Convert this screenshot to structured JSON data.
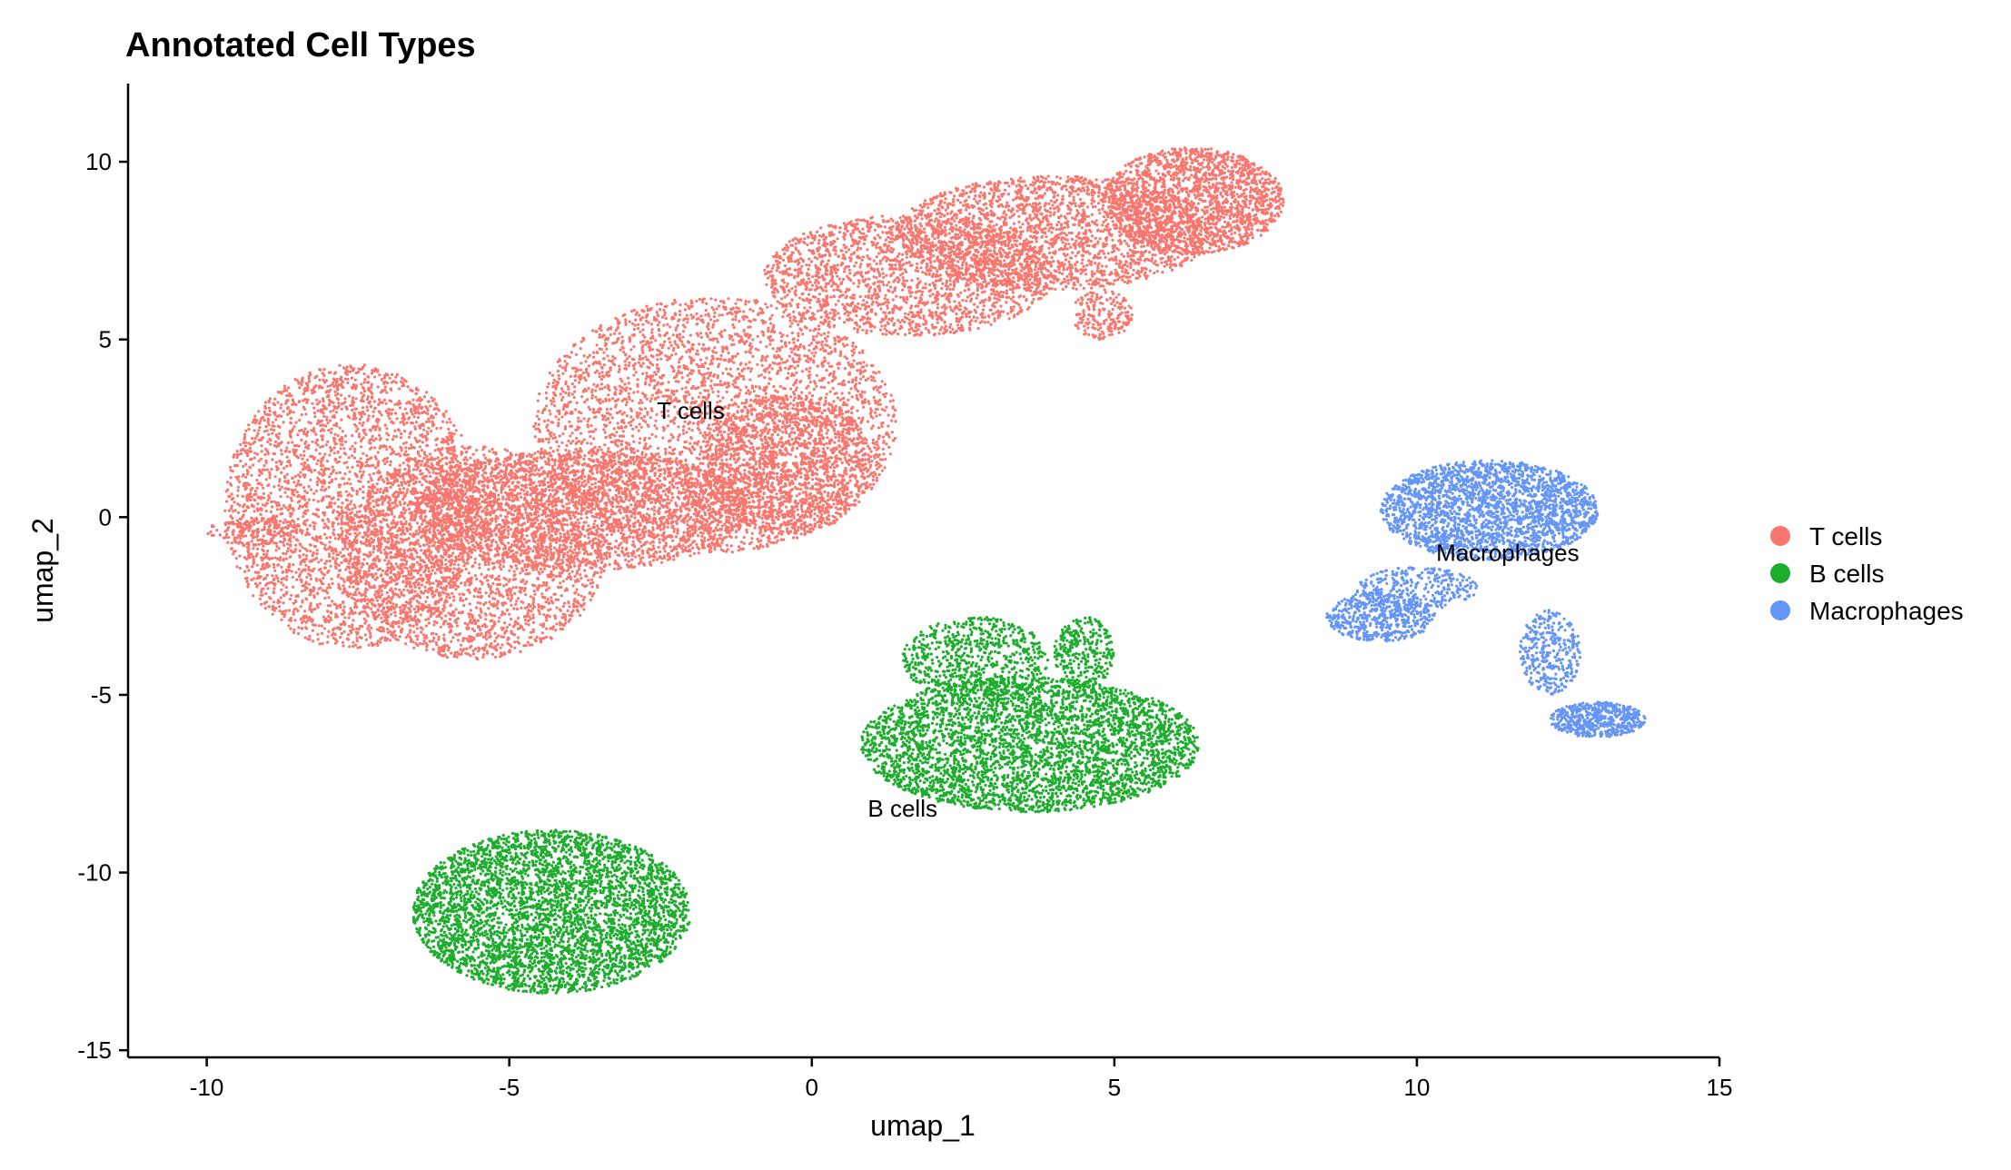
{
  "chart_data": {
    "type": "scatter",
    "title": "Annotated Cell Types",
    "xlabel": "umap_1",
    "ylabel": "umap_2",
    "xlim": [
      -11.3,
      15
    ],
    "ylim": [
      -15.2,
      12.2
    ],
    "x_ticks": [
      -10,
      -5,
      0,
      5,
      10,
      15
    ],
    "y_ticks": [
      -15,
      -10,
      -5,
      0,
      5,
      10
    ],
    "x_tick_labels": [
      "-10",
      "-5",
      "0",
      "5",
      "10",
      "15"
    ],
    "y_tick_labels": [
      "-15",
      "-10",
      "-5",
      "0",
      "5",
      "10"
    ],
    "grid": false,
    "legend_position": "right",
    "series": [
      {
        "name": "T cells",
        "color": "#F8766D",
        "label_position": [
          -2,
          3
        ],
        "regions": [
          {
            "cx": -7.6,
            "cy": 0.3,
            "rx": 2.1,
            "ry": 4.0,
            "n": 3200
          },
          {
            "cx": -5.6,
            "cy": -1.0,
            "rx": 2.2,
            "ry": 3.0,
            "n": 2600
          },
          {
            "cx": -3.8,
            "cy": 0.2,
            "rx": 2.8,
            "ry": 1.7,
            "n": 2400
          },
          {
            "cx": -1.6,
            "cy": 2.6,
            "rx": 3.0,
            "ry": 3.6,
            "n": 3600
          },
          {
            "cx": -0.4,
            "cy": 1.5,
            "rx": 1.4,
            "ry": 2.0,
            "n": 1400
          },
          {
            "cx": 1.6,
            "cy": 6.8,
            "rx": 2.4,
            "ry": 1.7,
            "n": 2000
          },
          {
            "cx": 4.0,
            "cy": 8.0,
            "rx": 2.6,
            "ry": 1.6,
            "n": 2200
          },
          {
            "cx": 6.3,
            "cy": 8.9,
            "rx": 1.5,
            "ry": 1.5,
            "n": 1800
          },
          {
            "cx": -9.2,
            "cy": -0.4,
            "rx": 0.8,
            "ry": 0.4,
            "n": 150
          },
          {
            "cx": 4.8,
            "cy": 5.7,
            "rx": 0.5,
            "ry": 0.7,
            "n": 200
          }
        ]
      },
      {
        "name": "B cells",
        "color": "#1BAD2B",
        "label_position": [
          1.5,
          -8.2
        ],
        "regions": [
          {
            "cx": 3.6,
            "cy": -6.4,
            "rx": 2.8,
            "ry": 1.9,
            "n": 3800
          },
          {
            "cx": 2.7,
            "cy": -4.0,
            "rx": 1.2,
            "ry": 1.2,
            "n": 700
          },
          {
            "cx": 4.5,
            "cy": -3.8,
            "rx": 0.5,
            "ry": 1.0,
            "n": 300
          },
          {
            "cx": -4.3,
            "cy": -11.1,
            "rx": 2.3,
            "ry": 2.3,
            "n": 4200
          }
        ]
      },
      {
        "name": "Macrophages",
        "color": "#6495F7",
        "label_position": [
          11.5,
          -1
        ],
        "regions": [
          {
            "cx": 11.2,
            "cy": 0.2,
            "rx": 1.8,
            "ry": 1.4,
            "n": 2400
          },
          {
            "cx": 9.4,
            "cy": -2.8,
            "rx": 0.9,
            "ry": 0.7,
            "n": 500
          },
          {
            "cx": 10.0,
            "cy": -2.0,
            "rx": 1.0,
            "ry": 0.6,
            "n": 300
          },
          {
            "cx": 12.2,
            "cy": -3.8,
            "rx": 0.5,
            "ry": 1.2,
            "n": 350
          },
          {
            "cx": 13.0,
            "cy": -5.7,
            "rx": 0.8,
            "ry": 0.5,
            "n": 550
          }
        ]
      }
    ]
  }
}
